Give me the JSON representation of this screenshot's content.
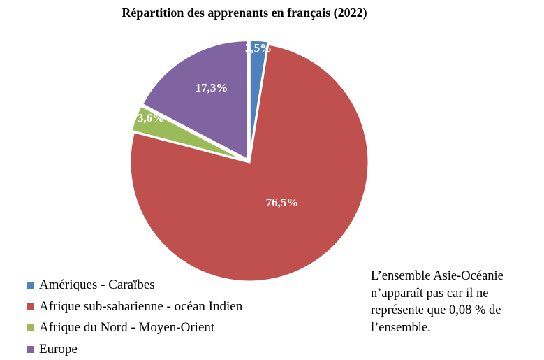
{
  "chart_data": {
    "type": "pie",
    "title": "Répartition des apprenants en français (2022)",
    "slices": [
      {
        "label": "Amériques - Caraïbes",
        "value": 2.5,
        "display": "2,5%",
        "color": "#4f81bd",
        "exploded": true
      },
      {
        "label": "Afrique sub-saharienne - océan Indien",
        "value": 76.5,
        "display": "76,5%",
        "color": "#c0504d",
        "exploded": false
      },
      {
        "label": "Afrique du Nord - Moyen-Orient",
        "value": 3.6,
        "display": "3,6%",
        "color": "#9bbb59",
        "exploded": true
      },
      {
        "label": "Europe",
        "value": 17.3,
        "display": "17,3%",
        "color": "#8064a2",
        "exploded": true
      }
    ],
    "legend_position": "bottom-left",
    "annotation": "L’ensemble Asie-Océanie n’apparaît pas car il ne représente que 0,08 % de l’ensemble."
  }
}
